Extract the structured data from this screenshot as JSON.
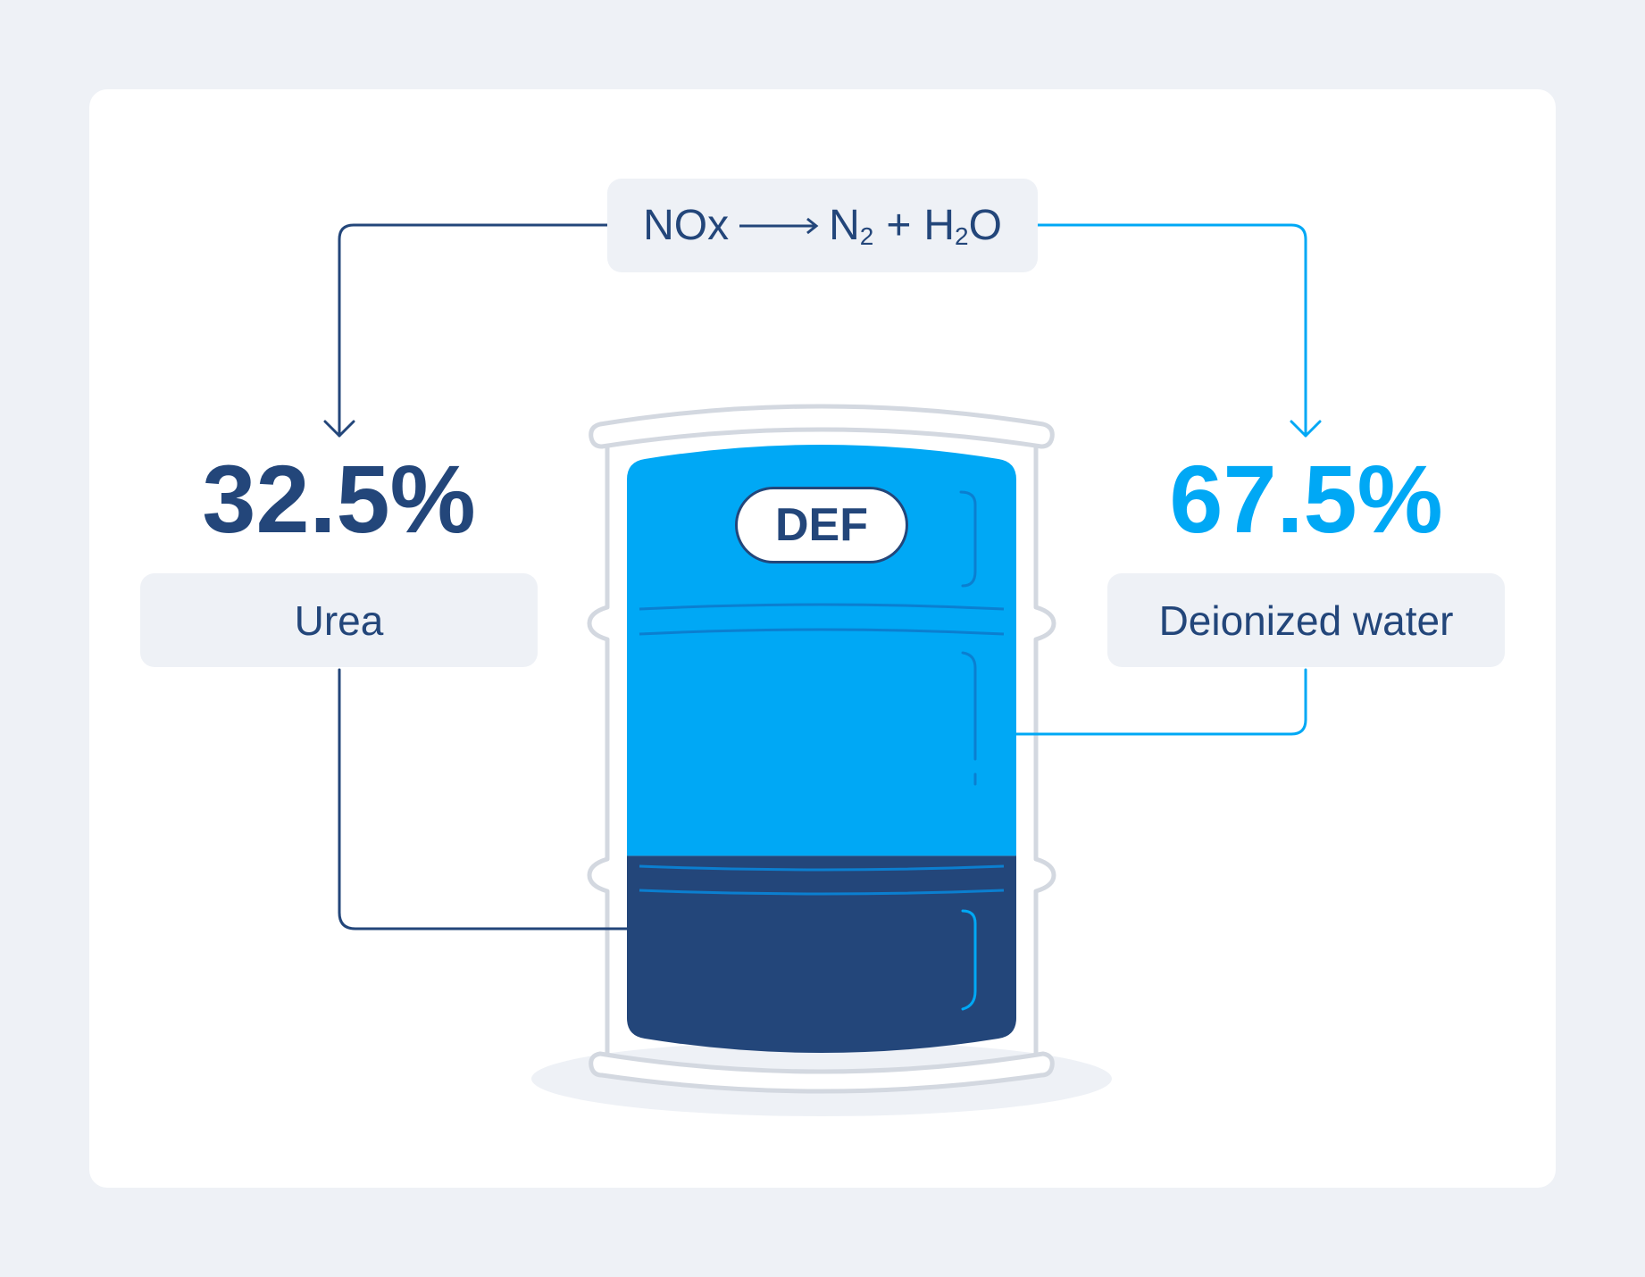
{
  "reaction": {
    "reactant": "NOx",
    "product_1": "N",
    "product_1_subscript": "2",
    "plus": "+",
    "product_2_prefix": "H",
    "product_2_subscript": "2",
    "product_2_suffix": "O"
  },
  "barrel": {
    "label": "DEF",
    "water_fraction": 0.675,
    "urea_fraction": 0.325
  },
  "components": [
    {
      "percent": "32.5%",
      "name": "Urea",
      "color": "#23467a"
    },
    {
      "percent": "67.5%",
      "name": "Deionized water",
      "color": "#00a8f5"
    }
  ],
  "colors": {
    "background": "#eef1f6",
    "card": "#ffffff",
    "urea": "#23467a",
    "water": "#00a8f5",
    "barrel_outline": "#d3d8e0"
  }
}
